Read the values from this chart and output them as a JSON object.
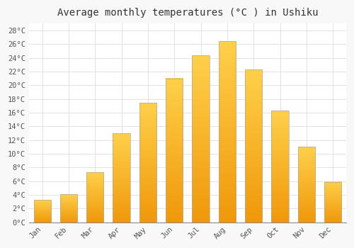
{
  "title": "Average monthly temperatures (°C ) in Ushiku",
  "months": [
    "Jan",
    "Feb",
    "Mar",
    "Apr",
    "May",
    "Jun",
    "Jul",
    "Aug",
    "Sep",
    "Oct",
    "Nov",
    "Dec"
  ],
  "temperatures": [
    3.3,
    4.1,
    7.3,
    13.0,
    17.4,
    21.0,
    24.4,
    26.4,
    22.3,
    16.3,
    11.0,
    5.9
  ],
  "bar_color_light": "#FFD04A",
  "bar_color_dark": "#F0980A",
  "bar_edge_color": "#AAAAAA",
  "background_color": "#F8F8F8",
  "plot_bg_color": "#FFFFFF",
  "grid_color": "#DDDDDD",
  "title_fontsize": 10,
  "tick_fontsize": 7.5,
  "ylim": [
    0,
    29
  ],
  "yticks": [
    0,
    2,
    4,
    6,
    8,
    10,
    12,
    14,
    16,
    18,
    20,
    22,
    24,
    26,
    28
  ]
}
